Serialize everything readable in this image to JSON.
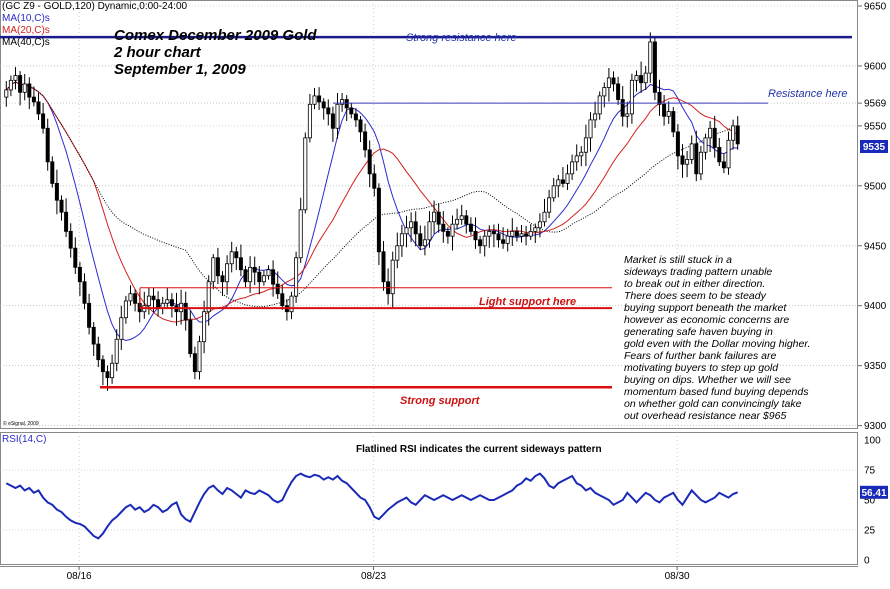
{
  "header": {
    "symbol_line": "(GC Z9 - GOLD,120) Dynamic,0:00-24:00",
    "ma_labels": [
      {
        "text": "MA(10,C)s",
        "color": "#2a2ad0"
      },
      {
        "text": "MA(20,C)s",
        "color": "#d42020"
      },
      {
        "text": "MA(40,C)s",
        "color": "#000000"
      }
    ]
  },
  "title_lines": [
    "Comex December 2009 Gold",
    "2 hour chart",
    "September 1, 2009"
  ],
  "annotations": {
    "strong_resistance": "Strong resistance here",
    "resistance": "Resistance here",
    "light_support": "Light support here",
    "strong_support": "Strong support",
    "rsi_note": "Flatlined RSI indicates the current sideways pattern",
    "watermark": "© eSignal, 2009"
  },
  "commentary": [
    "Market is still stuck in a",
    "sideways trading pattern unable",
    "to break out in either direction.",
    "There does seem to be steady",
    "buying support beneath the market",
    "however as economic concerns are",
    "generating safe haven buying in",
    "gold even with the Dollar moving higher.",
    "Fears of further bank failures are",
    "motivating buyers to step up gold",
    "buying on dips. Whether we will see",
    "momentum based fund buying depends",
    "on whether gold can convincingly take",
    "out overhead resistance near $965"
  ],
  "colors": {
    "ma10": "#2a2ad0",
    "ma20": "#d42020",
    "ma40": "#000000",
    "strong_resistance_line": "#1a1a8c",
    "resistance_line": "#3a3ab8",
    "strong_support_line": "#d81010",
    "light_support_line": "#d81010",
    "rsi_line": "#1a2ab8",
    "last_price_box": "#1a2ab8",
    "candle": "#000000",
    "grid": "#aaaaaa"
  },
  "chart_data": [
    {
      "type": "candlestick",
      "title": "Comex December 2009 Gold",
      "subtitle": "2 hour chart",
      "xlabel": "",
      "ylabel": "",
      "x_tick_labels": [
        {
          "label": "08/16",
          "bar": 8
        },
        {
          "label": "08/23",
          "bar": 72
        },
        {
          "label": "08/30",
          "bar": 138
        }
      ],
      "y_ticks": [
        9300,
        9350,
        9400,
        9450,
        9500,
        9550,
        9569,
        9600,
        9650
      ],
      "ylim": [
        9298,
        9655
      ],
      "grid": "dotted horizontal lines at tick levels",
      "last_price_label": "9535",
      "horizontal_lines": [
        {
          "label": "Strong resistance here",
          "value": 9624
        },
        {
          "label": "Resistance here",
          "value": 9569
        },
        {
          "label": "Light support here",
          "value": 9415
        },
        {
          "label": "Strong support",
          "value": 9332
        }
      ],
      "extra_support_line": {
        "value": 9398
      },
      "series": [
        {
          "name": "MA(10,C)s",
          "values": []
        },
        {
          "name": "MA(20,C)s",
          "values": []
        },
        {
          "name": "MA(40,C)s",
          "values": []
        }
      ],
      "closes": [
        9580,
        9588,
        9592,
        9578,
        9585,
        9574,
        9570,
        9560,
        9548,
        9520,
        9502,
        9488,
        9478,
        9462,
        9448,
        9432,
        9420,
        9402,
        9382,
        9368,
        9355,
        9345,
        9340,
        9352,
        9372,
        9390,
        9404,
        9410,
        9402,
        9395,
        9400,
        9408,
        9405,
        9398,
        9402,
        9405,
        9400,
        9395,
        9402,
        9388,
        9360,
        9345,
        9370,
        9395,
        9420,
        9440,
        9425,
        9420,
        9435,
        9445,
        9440,
        9430,
        9420,
        9432,
        9428,
        9420,
        9425,
        9430,
        9418,
        9410,
        9400,
        9395,
        9408,
        9440,
        9480,
        9540,
        9568,
        9575,
        9570,
        9565,
        9560,
        9548,
        9568,
        9572,
        9565,
        9560,
        9555,
        9545,
        9530,
        9510,
        9498,
        9445,
        9420,
        9410,
        9438,
        9450,
        9460,
        9465,
        9470,
        9460,
        9450,
        9455,
        9470,
        9478,
        9468,
        9462,
        9458,
        9468,
        9472,
        9475,
        9468,
        9462,
        9455,
        9450,
        9458,
        9462,
        9460,
        9455,
        9452,
        9458,
        9462,
        9458,
        9460,
        9458,
        9462,
        9465,
        9470,
        9478,
        9490,
        9500,
        9505,
        9502,
        9510,
        9520,
        9525,
        9528,
        9540,
        9555,
        9560,
        9575,
        9582,
        9590,
        9585,
        9572,
        9558,
        9560,
        9588,
        9592,
        9586,
        9594,
        9620,
        9578,
        9568,
        9558,
        9562,
        9545,
        9525,
        9518,
        9522,
        9535,
        9510,
        9528,
        9540,
        9548,
        9532,
        9520,
        9515,
        9538,
        9550,
        9535
      ]
    },
    {
      "type": "line",
      "title": "RSI(14,C)",
      "subtitle": "Flatlined RSI indicates the current sideways pattern",
      "ylim": [
        0,
        100
      ],
      "y_ticks": [
        0,
        25,
        50,
        75,
        100
      ],
      "last_value_label": "56.41",
      "series": [
        {
          "name": "RSI(14,C)",
          "values": [
            64,
            62,
            60,
            62,
            58,
            60,
            56,
            58,
            52,
            48,
            46,
            42,
            40,
            36,
            33,
            31,
            30,
            28,
            24,
            20,
            18,
            22,
            28,
            33,
            36,
            40,
            44,
            46,
            42,
            44,
            40,
            42,
            46,
            44,
            40,
            42,
            46,
            48,
            38,
            34,
            32,
            40,
            48,
            55,
            60,
            62,
            58,
            55,
            60,
            58,
            55,
            52,
            58,
            56,
            55,
            58,
            56,
            54,
            50,
            48,
            50,
            58,
            65,
            70,
            72,
            70,
            69,
            71,
            70,
            67,
            69,
            67,
            70,
            66,
            64,
            60,
            56,
            52,
            50,
            44,
            36,
            34,
            38,
            42,
            45,
            48,
            50,
            52,
            48,
            46,
            50,
            54,
            52,
            50,
            52,
            54,
            52,
            50,
            52,
            54,
            52,
            50,
            52,
            54,
            52,
            50,
            50,
            52,
            54,
            56,
            58,
            62,
            64,
            68,
            66,
            70,
            72,
            68,
            62,
            60,
            64,
            66,
            68,
            70,
            64,
            62,
            58,
            60,
            56,
            54,
            52,
            50,
            46,
            48,
            50,
            56,
            52,
            48,
            52,
            56,
            54,
            50,
            48,
            52,
            54,
            56,
            50,
            46,
            52,
            58,
            54,
            50,
            48,
            50,
            52,
            56,
            54,
            52,
            55,
            56.41
          ]
        }
      ]
    }
  ]
}
